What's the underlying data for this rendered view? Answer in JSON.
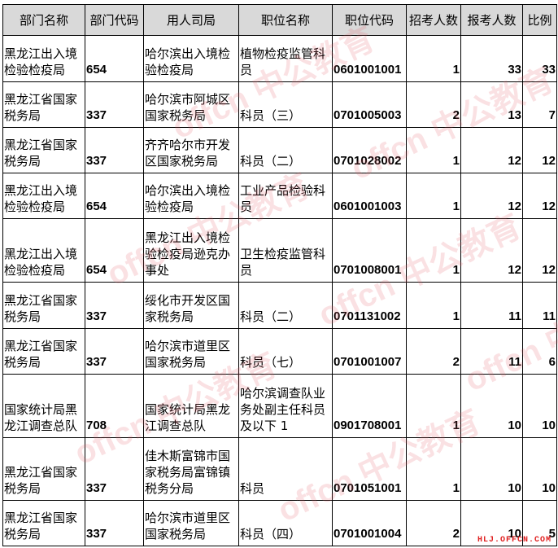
{
  "table": {
    "headers": [
      "部门名称",
      "部门代码",
      "用人司局",
      "职位名称",
      "职位代码",
      "招考人数",
      "报考人数",
      "比例"
    ],
    "rows": [
      {
        "dept": "黑龙江出入境检验检疫局",
        "dept_code": "654",
        "bureau": "哈尔滨出入境检验检疫局",
        "position": "植物检疫监管科员",
        "pos_code": "0601001001",
        "quota": "1",
        "applicants": "33",
        "ratio": "33"
      },
      {
        "dept": "黑龙江省国家税务局",
        "dept_code": "337",
        "bureau": "哈尔滨市阿城区国家税务局",
        "position": "科员（三）",
        "pos_code": "0701005003",
        "quota": "2",
        "applicants": "13",
        "ratio": "7"
      },
      {
        "dept": "黑龙江省国家税务局",
        "dept_code": "337",
        "bureau": "齐齐哈尔市开发区国家税务局",
        "position": "科员（二）",
        "pos_code": "0701028002",
        "quota": "1",
        "applicants": "12",
        "ratio": "12"
      },
      {
        "dept": "黑龙江出入境检验检疫局",
        "dept_code": "654",
        "bureau": "哈尔滨出入境检验检疫局",
        "position": "工业产品检验科员",
        "pos_code": "0601001003",
        "quota": "1",
        "applicants": "12",
        "ratio": "12"
      },
      {
        "dept": "黑龙江出入境检验检疫局",
        "dept_code": "654",
        "bureau": "黑龙江出入境检验检疫局逊克办事处",
        "position": "卫生检疫监管科员",
        "pos_code": "0701008001",
        "quota": "1",
        "applicants": "12",
        "ratio": "12"
      },
      {
        "dept": "黑龙江省国家税务局",
        "dept_code": "337",
        "bureau": "绥化市开发区国家税务局",
        "position": "科员（二）",
        "pos_code": "0701131002",
        "quota": "1",
        "applicants": "11",
        "ratio": "11"
      },
      {
        "dept": "黑龙江省国家税务局",
        "dept_code": "337",
        "bureau": "哈尔滨市道里区国家税务局",
        "position": "科员（七）",
        "pos_code": "0701001007",
        "quota": "2",
        "applicants": "11",
        "ratio": "6"
      },
      {
        "dept": "国家统计局黑龙江调查总队",
        "dept_code": "708",
        "bureau": "国家统计局黑龙江调查总队",
        "position": "哈尔滨调查队业务处副主任科员及以下 1",
        "pos_code": "0901708001",
        "quota": "1",
        "applicants": "10",
        "ratio": "10"
      },
      {
        "dept": "黑龙江省国家税务局",
        "dept_code": "337",
        "bureau": "佳木斯富锦市国家税务局富锦镇税务分局",
        "position": "科员",
        "pos_code": "0701051001",
        "quota": "1",
        "applicants": "10",
        "ratio": "10"
      },
      {
        "dept": "黑龙江省国家税务局",
        "dept_code": "337",
        "bureau": "哈尔滨市道里区国家税务局",
        "position": "科员（四）",
        "pos_code": "0701001004",
        "quota": "2",
        "applicants": "10",
        "ratio": "5"
      }
    ]
  },
  "watermark": {
    "text": "offcn 中公教育",
    "site": "HLJ.OFFCN.COM",
    "color": "#e02020"
  }
}
